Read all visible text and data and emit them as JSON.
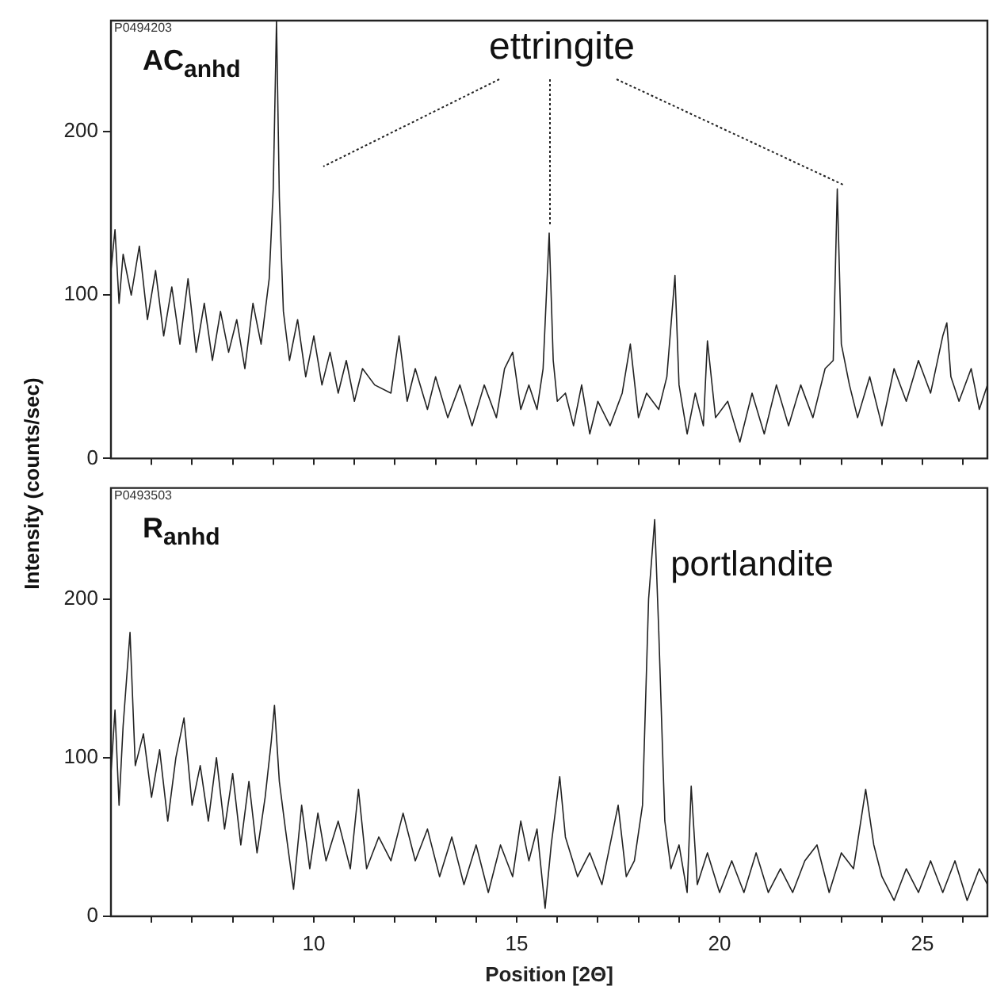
{
  "chart_data": [
    {
      "type": "line",
      "ylabel": "Intensity (counts/sec)",
      "xlim": [
        5,
        26.6
      ],
      "ylim": [
        0,
        268
      ],
      "yticks": [
        0,
        100,
        200
      ],
      "xticks": [
        {
          "value": 6,
          "label": null
        },
        {
          "value": 7,
          "label": null
        },
        {
          "value": 8,
          "label": null
        },
        {
          "value": 9,
          "label": null
        },
        10,
        {
          "value": 11,
          "label": null
        },
        {
          "value": 12,
          "label": null
        },
        {
          "value": 13,
          "label": null
        },
        {
          "value": 14,
          "label": null
        },
        15,
        {
          "value": 16,
          "label": null
        },
        {
          "value": 17,
          "label": null
        },
        {
          "value": 18,
          "label": null
        },
        {
          "value": 19,
          "label": null
        },
        20,
        {
          "value": 21,
          "label": null
        },
        {
          "value": 22,
          "label": null
        },
        {
          "value": 23,
          "label": null
        },
        {
          "value": 24,
          "label": null
        },
        25,
        {
          "value": 26,
          "label": null
        }
      ],
      "tick_labels": "y",
      "grid": false,
      "legend": false,
      "marker": "none",
      "annotations": [
        "P0494203",
        "AC$_{anhd}$",
        {
          "text": "ettringite",
          "x": 15.8,
          "y": 138
        }
      ],
      "series": [
        {
          "color": "#222222",
          "x": [
            5.0,
            5.1,
            5.2,
            5.3,
            5.5,
            5.7,
            5.9,
            6.1,
            6.3,
            6.5,
            6.7,
            6.9,
            7.1,
            7.3,
            7.5,
            7.7,
            7.9,
            8.1,
            8.3,
            8.5,
            8.7,
            8.9,
            9.0,
            9.08,
            9.15,
            9.25,
            9.4,
            9.6,
            9.8,
            10.0,
            10.2,
            10.4,
            10.6,
            10.8,
            11.0,
            11.2,
            11.5,
            11.9,
            12.1,
            12.3,
            12.5,
            12.8,
            13.0,
            13.3,
            13.6,
            13.9,
            14.2,
            14.5,
            14.7,
            14.9,
            15.1,
            15.3,
            15.5,
            15.65,
            15.8,
            15.9,
            16.0,
            16.2,
            16.4,
            16.6,
            16.8,
            17.0,
            17.3,
            17.6,
            17.8,
            18.0,
            18.2,
            18.5,
            18.7,
            18.9,
            19.0,
            19.2,
            19.4,
            19.6,
            19.7,
            19.9,
            20.2,
            20.5,
            20.8,
            21.1,
            21.4,
            21.7,
            22.0,
            22.3,
            22.6,
            22.8,
            22.9,
            23.0,
            23.2,
            23.4,
            23.7,
            24.0,
            24.3,
            24.6,
            24.9,
            25.2,
            25.5,
            25.6,
            25.7,
            25.9,
            26.2,
            26.4,
            26.6
          ],
          "values": [
            115,
            140,
            95,
            125,
            100,
            130,
            85,
            115,
            75,
            105,
            70,
            110,
            65,
            95,
            60,
            90,
            65,
            85,
            55,
            95,
            70,
            110,
            165,
            268,
            160,
            90,
            60,
            85,
            50,
            75,
            45,
            65,
            40,
            60,
            35,
            55,
            45,
            40,
            75,
            35,
            55,
            30,
            50,
            25,
            45,
            20,
            45,
            25,
            55,
            65,
            30,
            45,
            30,
            55,
            138,
            60,
            35,
            40,
            20,
            45,
            15,
            35,
            20,
            40,
            70,
            25,
            40,
            30,
            50,
            112,
            45,
            15,
            40,
            20,
            72,
            25,
            35,
            10,
            40,
            15,
            45,
            20,
            45,
            25,
            55,
            60,
            165,
            70,
            45,
            25,
            50,
            20,
            55,
            35,
            60,
            40,
            75,
            83,
            50,
            35,
            55,
            30,
            45
          ]
        }
      ]
    },
    {
      "type": "line",
      "xlabel": "Position [2Θ]",
      "xlim": [
        5,
        26.6
      ],
      "ylim": [
        0,
        270
      ],
      "yticks": [
        0,
        100,
        200
      ],
      "xticks": [
        {
          "value": 6,
          "label": null
        },
        {
          "value": 7,
          "label": null
        },
        {
          "value": 8,
          "label": null
        },
        {
          "value": 9,
          "label": null
        },
        10,
        {
          "value": 11,
          "label": null
        },
        {
          "value": 12,
          "label": null
        },
        {
          "value": 13,
          "label": null
        },
        {
          "value": 14,
          "label": null
        },
        15,
        {
          "value": 16,
          "label": null
        },
        {
          "value": 17,
          "label": null
        },
        {
          "value": 18,
          "label": null
        },
        {
          "value": 19,
          "label": null
        },
        20,
        {
          "value": 21,
          "label": null
        },
        {
          "value": 22,
          "label": null
        },
        {
          "value": 23,
          "label": null
        },
        {
          "value": 24,
          "label": null
        },
        25,
        {
          "value": 26,
          "label": null
        }
      ],
      "grid": false,
      "legend": false,
      "marker": "none",
      "annotations": [
        "P0493503",
        "R$_{anhd}$",
        {
          "text": "portlandite",
          "x": 18.4,
          "y": 250
        }
      ],
      "series": [
        {
          "color": "#222222",
          "x": [
            5.0,
            5.1,
            5.2,
            5.3,
            5.47,
            5.6,
            5.8,
            6.0,
            6.2,
            6.4,
            6.6,
            6.8,
            7.0,
            7.2,
            7.4,
            7.6,
            7.8,
            8.0,
            8.2,
            8.4,
            8.6,
            8.8,
            8.95,
            9.03,
            9.15,
            9.3,
            9.5,
            9.7,
            9.9,
            10.1,
            10.3,
            10.6,
            10.9,
            11.1,
            11.3,
            11.6,
            11.9,
            12.2,
            12.5,
            12.8,
            13.1,
            13.4,
            13.7,
            14.0,
            14.3,
            14.6,
            14.9,
            15.1,
            15.3,
            15.5,
            15.7,
            15.85,
            16.06,
            16.2,
            16.5,
            16.8,
            17.1,
            17.3,
            17.5,
            17.7,
            17.9,
            18.1,
            18.25,
            18.4,
            18.5,
            18.65,
            18.8,
            19.0,
            19.2,
            19.3,
            19.45,
            19.7,
            20.0,
            20.3,
            20.6,
            20.9,
            21.2,
            21.5,
            21.8,
            22.1,
            22.4,
            22.7,
            23.0,
            23.3,
            23.6,
            23.8,
            24.0,
            24.3,
            24.6,
            24.9,
            25.2,
            25.5,
            25.8,
            26.1,
            26.4,
            26.6
          ],
          "values": [
            90,
            130,
            70,
            120,
            179,
            95,
            115,
            75,
            105,
            60,
            100,
            125,
            70,
            95,
            60,
            100,
            55,
            90,
            45,
            85,
            40,
            75,
            110,
            133,
            85,
            55,
            17,
            70,
            30,
            65,
            35,
            60,
            30,
            80,
            30,
            50,
            35,
            65,
            35,
            55,
            25,
            50,
            20,
            45,
            15,
            45,
            25,
            60,
            35,
            55,
            5,
            45,
            88,
            50,
            25,
            40,
            20,
            45,
            70,
            25,
            35,
            70,
            200,
            250,
            180,
            60,
            30,
            45,
            15,
            82,
            20,
            40,
            15,
            35,
            15,
            40,
            15,
            30,
            15,
            35,
            45,
            15,
            40,
            30,
            80,
            45,
            25,
            10,
            30,
            15,
            35,
            15,
            35,
            10,
            30,
            20
          ]
        }
      ]
    }
  ]
}
